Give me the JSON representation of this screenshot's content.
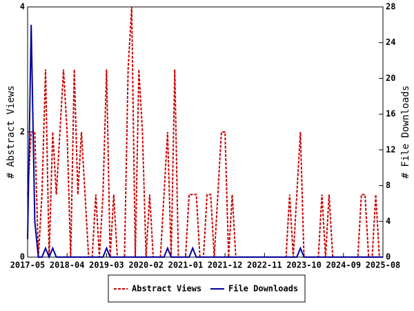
{
  "chart_data": {
    "type": "line",
    "x": [
      "2017-05",
      "2017-06",
      "2017-07",
      "2017-08",
      "2017-09",
      "2017-10",
      "2017-11",
      "2017-12",
      "2018-01",
      "2018-02",
      "2018-03",
      "2018-04",
      "2018-05",
      "2018-06",
      "2018-07",
      "2018-08",
      "2018-09",
      "2018-10",
      "2018-11",
      "2018-12",
      "2019-01",
      "2019-02",
      "2019-03",
      "2019-04",
      "2019-05",
      "2019-06",
      "2019-07",
      "2019-08",
      "2019-09",
      "2019-10",
      "2019-11",
      "2019-12",
      "2020-01",
      "2020-02",
      "2020-03",
      "2020-04",
      "2020-05",
      "2020-06",
      "2020-07",
      "2020-08",
      "2020-09",
      "2020-10",
      "2020-11",
      "2020-12",
      "2021-01",
      "2021-02",
      "2021-03",
      "2021-04",
      "2021-05",
      "2021-06",
      "2021-07",
      "2021-08",
      "2021-09",
      "2021-10",
      "2021-11",
      "2021-12",
      "2022-01",
      "2022-02",
      "2022-03",
      "2022-04",
      "2022-05",
      "2022-06",
      "2022-07",
      "2022-08",
      "2022-09",
      "2022-10",
      "2022-11",
      "2022-12",
      "2023-01",
      "2023-02",
      "2023-03",
      "2023-04",
      "2023-05",
      "2023-06",
      "2023-07",
      "2023-08",
      "2023-09",
      "2023-10",
      "2023-11",
      "2023-12",
      "2024-01",
      "2024-02",
      "2024-03",
      "2024-04",
      "2024-05",
      "2024-06",
      "2024-07",
      "2024-08",
      "2024-09",
      "2024-10",
      "2024-11",
      "2024-12",
      "2025-01",
      "2025-02",
      "2025-03",
      "2025-04",
      "2025-05",
      "2025-06",
      "2025-07",
      "2025-08"
    ],
    "series": [
      {
        "name": "Abstract Views",
        "color": "#cc0000",
        "dash": true,
        "axis": "y",
        "values": [
          1,
          2,
          2,
          0,
          1,
          3,
          0,
          2,
          1,
          2,
          3,
          2,
          0,
          3,
          1,
          2,
          1,
          0,
          0,
          1,
          0,
          1,
          3,
          0,
          1,
          0,
          0,
          0,
          3,
          4,
          0,
          3,
          2,
          0,
          1,
          0,
          0,
          0,
          1,
          2,
          0,
          3,
          0,
          0,
          0,
          1,
          1,
          1,
          0,
          0,
          1,
          1,
          0,
          1,
          2,
          2,
          0,
          1,
          0,
          0,
          0,
          0,
          0,
          0,
          0,
          0,
          0,
          0,
          0,
          0,
          0,
          0,
          0,
          1,
          0,
          1,
          2,
          0,
          0,
          0,
          0,
          0,
          1,
          0,
          1,
          0,
          0,
          0,
          0,
          0,
          0,
          0,
          0,
          1,
          1,
          0,
          0,
          1,
          0,
          0
        ]
      },
      {
        "name": "File Downloads",
        "color": "#000099",
        "dash": false,
        "axis": "y2",
        "values": [
          2,
          26,
          4,
          0,
          0,
          1,
          0,
          1,
          0,
          0,
          0,
          0,
          0,
          0,
          0,
          0,
          0,
          0,
          0,
          0,
          0,
          0,
          1,
          0,
          0,
          0,
          0,
          0,
          0,
          0,
          0,
          0,
          0,
          0,
          0,
          0,
          0,
          0,
          0,
          1,
          0,
          0,
          0,
          0,
          0,
          0,
          1,
          0,
          0,
          0,
          0,
          0,
          0,
          0,
          0,
          0,
          0,
          0,
          0,
          0,
          0,
          0,
          0,
          0,
          0,
          0,
          0,
          0,
          0,
          0,
          0,
          0,
          0,
          0,
          0,
          0,
          1,
          0,
          0,
          0,
          0,
          0,
          0,
          0,
          0,
          0,
          0,
          0,
          0,
          0,
          0,
          0,
          0,
          0,
          0,
          0,
          0,
          0,
          0,
          0
        ]
      }
    ],
    "ylabel": "# Abstract Views",
    "y2label": "# File Downloads",
    "xlim": [
      "2017-05",
      "2025-08"
    ],
    "xticks": [
      "2017-05",
      "2018-04",
      "2019-03",
      "2020-02",
      "2021-01",
      "2021-12",
      "2022-11",
      "2023-10",
      "2024-09",
      "2025-08"
    ],
    "ylim": [
      0,
      4
    ],
    "yticks": [
      0,
      2,
      4
    ],
    "y2lim": [
      0,
      28
    ],
    "y2ticks": [
      0,
      4,
      8,
      12,
      16,
      20,
      24,
      28
    ],
    "legend": "bottom"
  }
}
